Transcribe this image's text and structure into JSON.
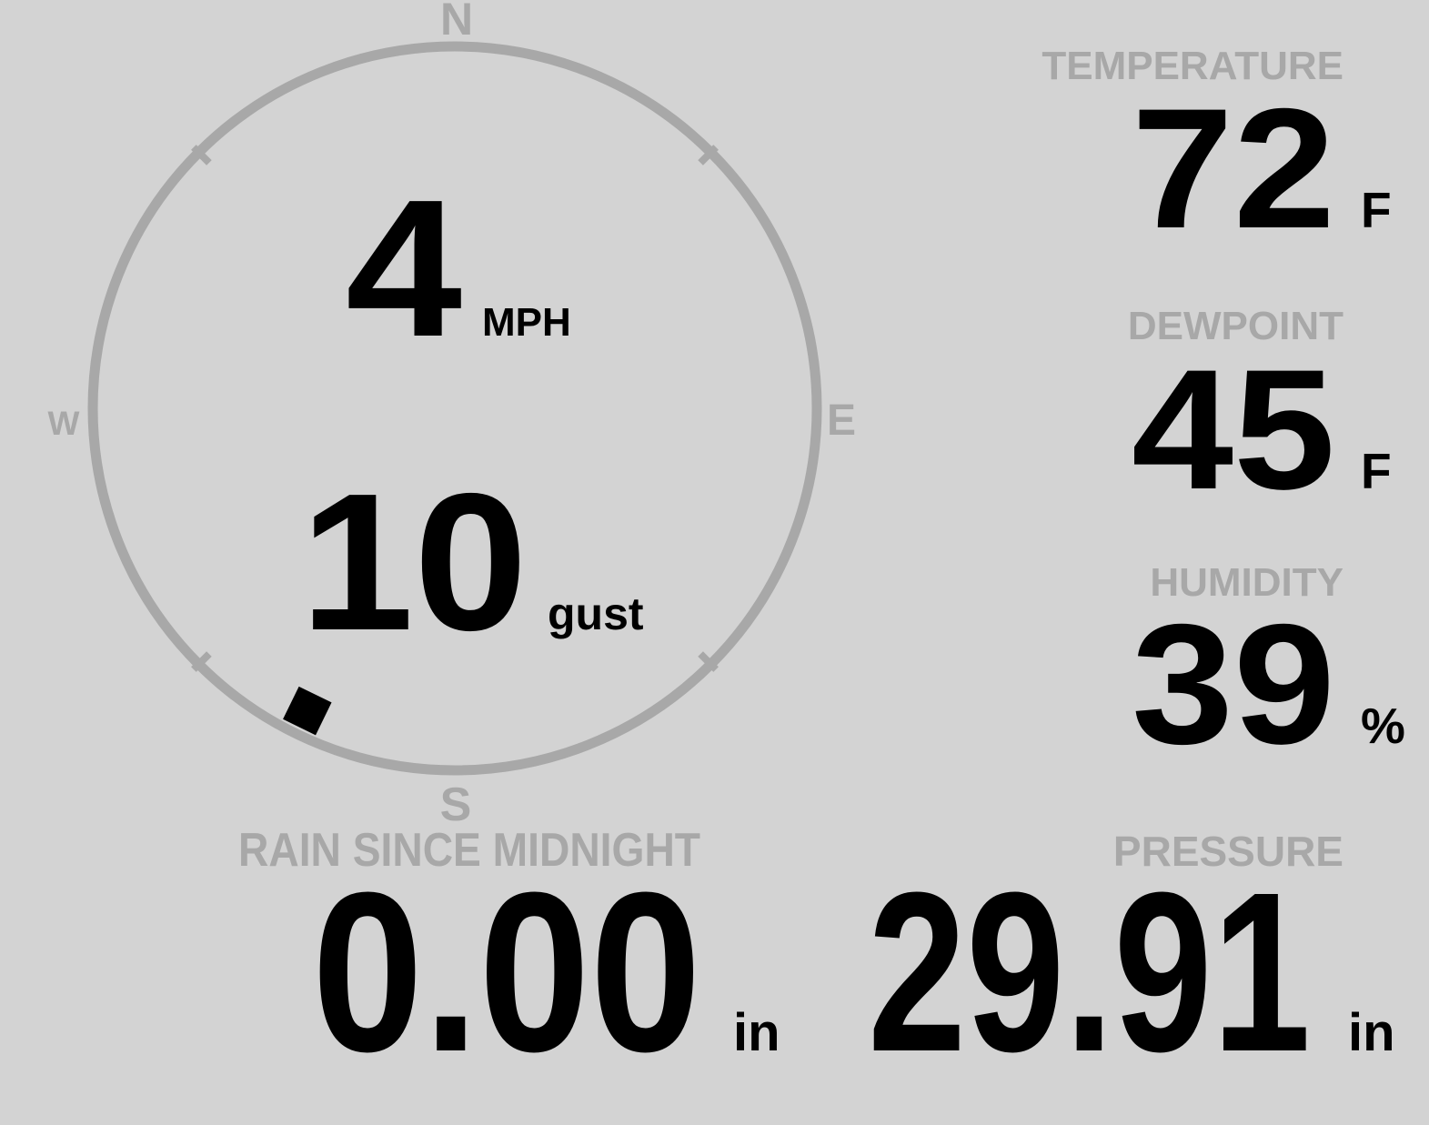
{
  "theme": {
    "background": "#d3d3d3",
    "muted_gray": "#a8a8a8",
    "value_black": "#000000"
  },
  "wind": {
    "speed": "4",
    "speed_unit": "MPH",
    "gust": "10",
    "gust_label": "gust",
    "direction_degrees": 206,
    "cardinals": {
      "north": "N",
      "east": "E",
      "south": "S",
      "west": "W"
    }
  },
  "metrics": {
    "temperature": {
      "label": "TEMPERATURE",
      "value": "72",
      "unit": "F"
    },
    "dewpoint": {
      "label": "DEWPOINT",
      "value": "45",
      "unit": "F"
    },
    "humidity": {
      "label": "HUMIDITY",
      "value": "39",
      "unit": "%"
    },
    "pressure": {
      "label": "PRESSURE",
      "value": "29.91",
      "unit": "in"
    },
    "rain": {
      "label": "RAIN SINCE MIDNIGHT",
      "value": "0.00",
      "unit": "in"
    }
  }
}
